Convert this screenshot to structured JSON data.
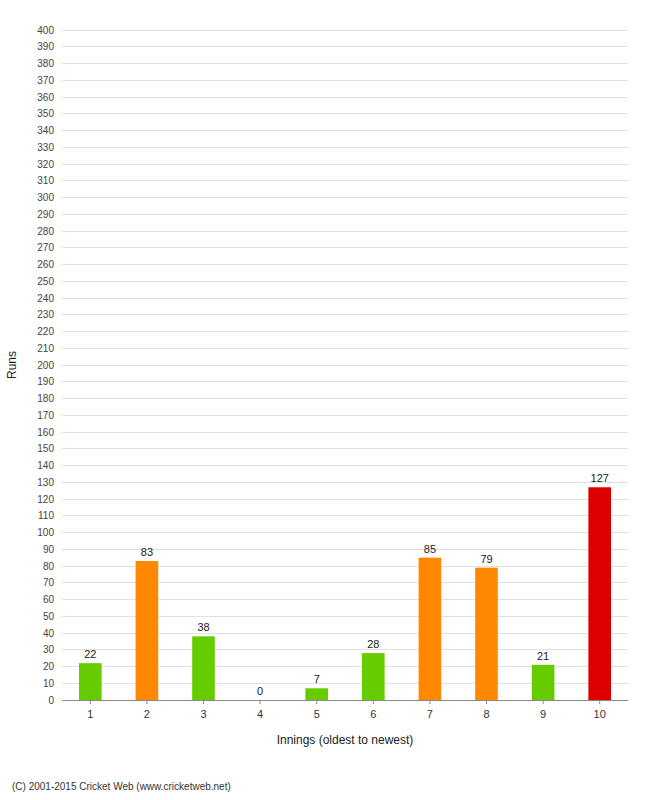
{
  "chart_data": {
    "type": "bar",
    "categories": [
      "1",
      "2",
      "3",
      "4",
      "5",
      "6",
      "7",
      "8",
      "9",
      "10"
    ],
    "values": [
      22,
      83,
      38,
      0,
      7,
      28,
      85,
      79,
      21,
      127
    ],
    "colors": [
      "#66cc00",
      "#ff8800",
      "#66cc00",
      "#66cc00",
      "#66cc00",
      "#66cc00",
      "#ff8800",
      "#ff8800",
      "#66cc00",
      "#dd0000"
    ],
    "xlabel": "Innings (oldest to newest)",
    "ylabel": "Runs",
    "ylim": [
      0,
      400
    ],
    "yticks": [
      0,
      10,
      20,
      30,
      40,
      50,
      60,
      70,
      80,
      90,
      100,
      110,
      120,
      130,
      140,
      150,
      160,
      170,
      180,
      190,
      200,
      210,
      220,
      230,
      240,
      250,
      260,
      270,
      280,
      290,
      300,
      310,
      320,
      330,
      340,
      350,
      360,
      370,
      380,
      390,
      400
    ],
    "grid": true,
    "data_labels": true,
    "annotations": [
      "(C) 2001-2015 Cricket Web (www.cricketweb.net)"
    ]
  }
}
